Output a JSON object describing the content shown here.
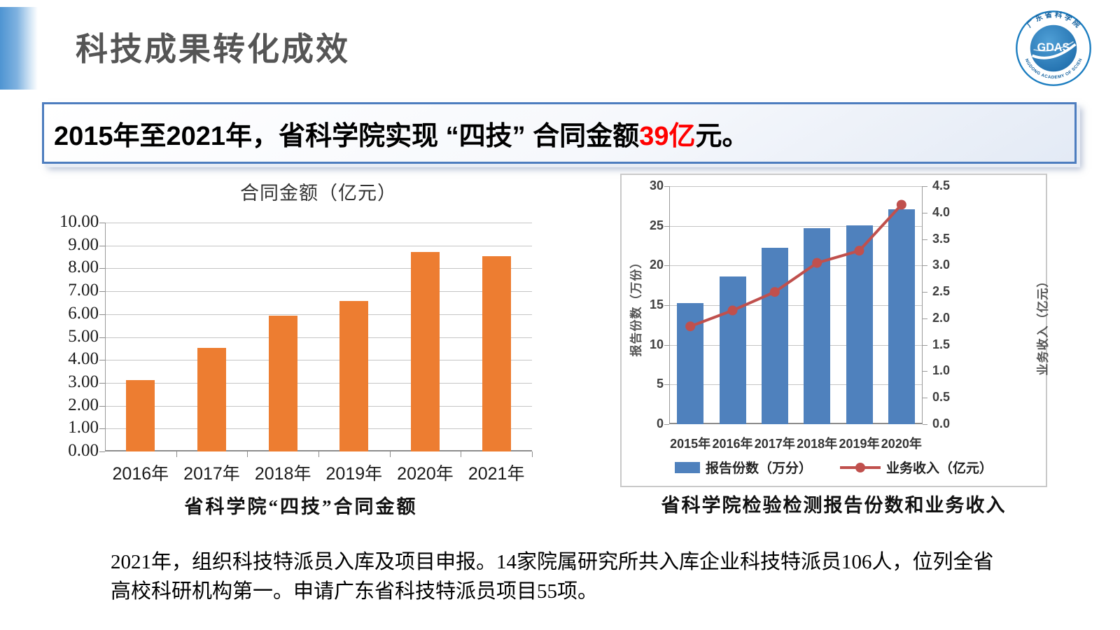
{
  "slide": {
    "title": "科技成果转化成效",
    "banner": {
      "text_before": "2015年至2021年，省科学院实现 “四技” 合同金额",
      "highlight": "39亿",
      "text_after": "元。",
      "highlight_color": "#ff0000"
    },
    "logo": {
      "center": "GDAS",
      "arc_top": "广 东 省 科 学 院",
      "arc_bottom": "GUANGDONG ACADEMY OF SCIENCES"
    },
    "paragraph_lines": [
      "2021年，组织科技特派员入库及项目申报。14家院属研究所共入库企业科技特派员106人，位列全省",
      "高校科研机构第一。申请广东省科技特派员项目55项。"
    ]
  },
  "chart_data": [
    {
      "type": "bar",
      "title": "合同金额（亿元）",
      "categories": [
        "2016年",
        "2017年",
        "2018年",
        "2019年",
        "2020年",
        "2021年"
      ],
      "values": [
        3.13,
        4.52,
        5.92,
        6.58,
        8.72,
        8.52
      ],
      "ylim": [
        0,
        10
      ],
      "yticks": [
        "10.00",
        "9.00",
        "8.00",
        "7.00",
        "6.00",
        "5.00",
        "4.00",
        "3.00",
        "2.00",
        "1.00",
        "0.00"
      ],
      "bar_color": "#ED7D31",
      "grid": true,
      "legend_position": "none",
      "caption": "省科学院“四技”合同金额"
    },
    {
      "type": "combo_bar_line",
      "categories": [
        "2015年",
        "2016年",
        "2017年",
        "2018年",
        "2019年",
        "2020年"
      ],
      "series": [
        {
          "name": "报告份数（万分）",
          "type": "bar",
          "axis": "left",
          "values": [
            15.3,
            18.6,
            22.2,
            24.7,
            25.1,
            27.1
          ],
          "color": "#4F81BD"
        },
        {
          "name": "业务收入（亿元）",
          "type": "line",
          "axis": "right",
          "values": [
            1.85,
            2.15,
            2.5,
            3.05,
            3.28,
            4.15
          ],
          "color": "#C0504D"
        }
      ],
      "left_axis": {
        "label": "报告份数（万份）",
        "lim": [
          0,
          30
        ],
        "ticks": [
          "30",
          "25",
          "20",
          "15",
          "10",
          "5",
          "0"
        ]
      },
      "right_axis": {
        "label": "业务收入（亿元）",
        "lim": [
          0,
          4.5
        ],
        "ticks": [
          "4.5",
          "4.0",
          "3.5",
          "3.0",
          "2.5",
          "2.0",
          "1.5",
          "1.0",
          "0.5",
          "0.0"
        ]
      },
      "grid": true,
      "legend_position": "bottom",
      "caption": "省科学院检验检测报告份数和业务收入"
    }
  ]
}
